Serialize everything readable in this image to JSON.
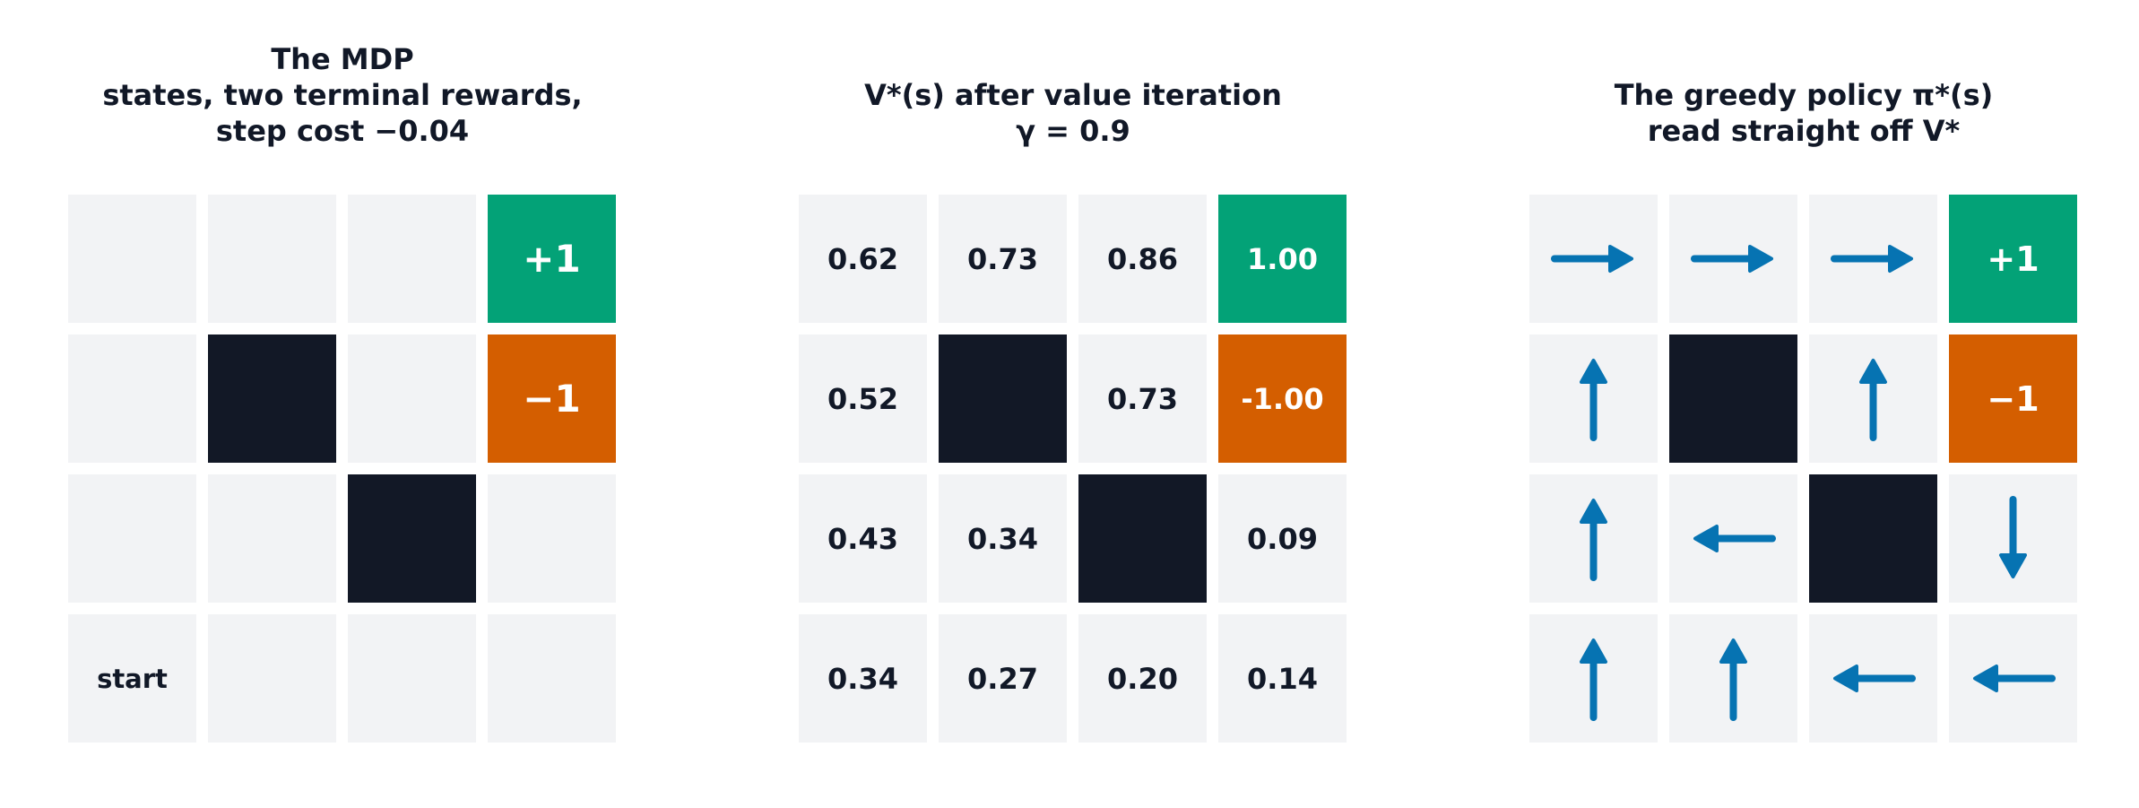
{
  "colors": {
    "background": "#ffffff",
    "cell": "#f2f3f5",
    "wall": "#121826",
    "positive_terminal": "#03a277",
    "negative_terminal": "#d45e00",
    "arrow": "#0673b2",
    "text": "#111827"
  },
  "panels": {
    "mdp": {
      "title": "The MDP\nstates, two terminal rewards,\nstep cost −0.04",
      "cells": [
        [
          {
            "kind": "empty",
            "text": ""
          },
          {
            "kind": "empty",
            "text": ""
          },
          {
            "kind": "empty",
            "text": ""
          },
          {
            "kind": "good",
            "text": "+1"
          }
        ],
        [
          {
            "kind": "empty",
            "text": ""
          },
          {
            "kind": "wall",
            "text": ""
          },
          {
            "kind": "empty",
            "text": ""
          },
          {
            "kind": "bad",
            "text": "−1"
          }
        ],
        [
          {
            "kind": "empty",
            "text": ""
          },
          {
            "kind": "empty",
            "text": ""
          },
          {
            "kind": "wall",
            "text": ""
          },
          {
            "kind": "empty",
            "text": ""
          }
        ],
        [
          {
            "kind": "empty",
            "text": "start"
          },
          {
            "kind": "empty",
            "text": ""
          },
          {
            "kind": "empty",
            "text": ""
          },
          {
            "kind": "empty",
            "text": ""
          }
        ]
      ]
    },
    "values": {
      "title": "V*(s) after value iteration\nγ = 0.9",
      "cells": [
        [
          {
            "kind": "empty",
            "text": "0.62"
          },
          {
            "kind": "empty",
            "text": "0.73"
          },
          {
            "kind": "empty",
            "text": "0.86"
          },
          {
            "kind": "good",
            "text": "1.00"
          }
        ],
        [
          {
            "kind": "empty",
            "text": "0.52"
          },
          {
            "kind": "wall",
            "text": ""
          },
          {
            "kind": "empty",
            "text": "0.73"
          },
          {
            "kind": "bad",
            "text": "-1.00"
          }
        ],
        [
          {
            "kind": "empty",
            "text": "0.43"
          },
          {
            "kind": "empty",
            "text": "0.34"
          },
          {
            "kind": "wall",
            "text": ""
          },
          {
            "kind": "empty",
            "text": "0.09"
          }
        ],
        [
          {
            "kind": "empty",
            "text": "0.34"
          },
          {
            "kind": "empty",
            "text": "0.27"
          },
          {
            "kind": "empty",
            "text": "0.20"
          },
          {
            "kind": "empty",
            "text": "0.14"
          }
        ]
      ]
    },
    "policy": {
      "title": "The greedy policy π*(s)\nread straight off V*",
      "cells": [
        [
          {
            "kind": "arrow",
            "dir": "right"
          },
          {
            "kind": "arrow",
            "dir": "right"
          },
          {
            "kind": "arrow",
            "dir": "right"
          },
          {
            "kind": "good",
            "text": "+1"
          }
        ],
        [
          {
            "kind": "arrow",
            "dir": "up"
          },
          {
            "kind": "wall"
          },
          {
            "kind": "arrow",
            "dir": "up"
          },
          {
            "kind": "bad",
            "text": "−1"
          }
        ],
        [
          {
            "kind": "arrow",
            "dir": "up"
          },
          {
            "kind": "arrow",
            "dir": "left"
          },
          {
            "kind": "wall"
          },
          {
            "kind": "arrow",
            "dir": "down"
          }
        ],
        [
          {
            "kind": "arrow",
            "dir": "up"
          },
          {
            "kind": "arrow",
            "dir": "up"
          },
          {
            "kind": "arrow",
            "dir": "left"
          },
          {
            "kind": "arrow",
            "dir": "left"
          }
        ]
      ]
    }
  }
}
